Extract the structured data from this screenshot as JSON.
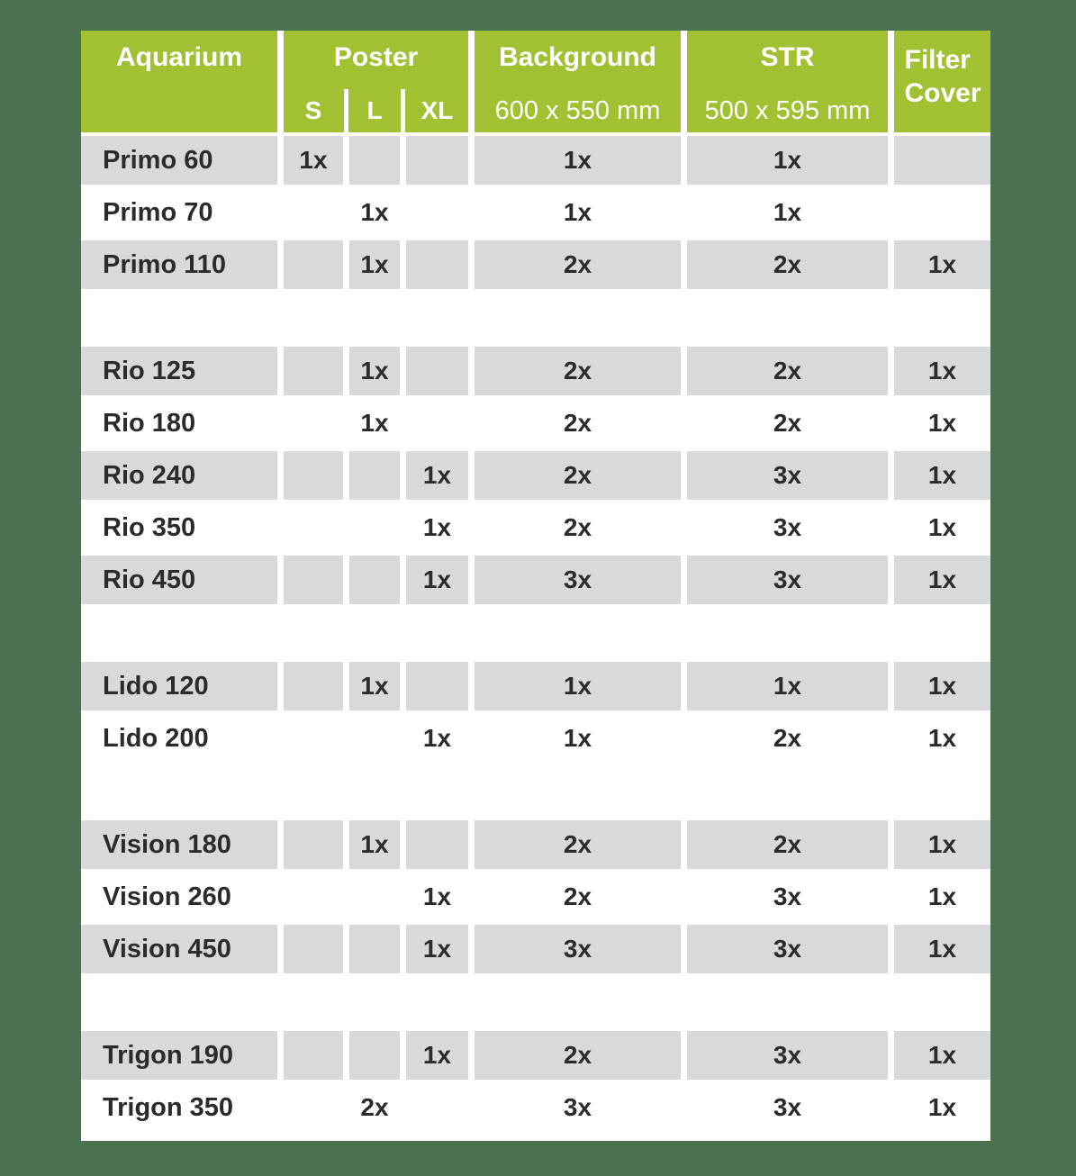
{
  "colors": {
    "page_background": "#4a7150",
    "header_green": "#a2c132",
    "row_gray": "#d8d9da",
    "header_text": "#ffffff",
    "body_text": "#2b2b2b"
  },
  "table": {
    "header": {
      "aquarium": "Aquarium",
      "poster": "Poster",
      "poster_sizes": [
        "S",
        "L",
        "XL"
      ],
      "background_label": "Background",
      "background_size": "600 x 550 mm",
      "str_label": "STR",
      "str_size": "500 x 595 mm",
      "filter_cover_line1": "Filter",
      "filter_cover_line2": "Cover"
    },
    "groups": [
      {
        "rows": [
          {
            "name": "Primo 60",
            "s": "1x",
            "l": "",
            "xl": "",
            "background": "1x",
            "str": "1x",
            "filter": ""
          },
          {
            "name": "Primo 70",
            "s": "",
            "l": "1x",
            "xl": "",
            "background": "1x",
            "str": "1x",
            "filter": ""
          },
          {
            "name": "Primo 110",
            "s": "",
            "l": "1x",
            "xl": "",
            "background": "2x",
            "str": "2x",
            "filter": "1x"
          }
        ]
      },
      {
        "rows": [
          {
            "name": "Rio 125",
            "s": "",
            "l": "1x",
            "xl": "",
            "background": "2x",
            "str": "2x",
            "filter": "1x"
          },
          {
            "name": "Rio 180",
            "s": "",
            "l": "1x",
            "xl": "",
            "background": "2x",
            "str": "2x",
            "filter": "1x"
          },
          {
            "name": "Rio 240",
            "s": "",
            "l": "",
            "xl": "1x",
            "background": "2x",
            "str": "3x",
            "filter": "1x"
          },
          {
            "name": "Rio 350",
            "s": "",
            "l": "",
            "xl": "1x",
            "background": "2x",
            "str": "3x",
            "filter": "1x"
          },
          {
            "name": "Rio 450",
            "s": "",
            "l": "",
            "xl": "1x",
            "background": "3x",
            "str": "3x",
            "filter": "1x"
          }
        ]
      },
      {
        "rows": [
          {
            "name": "Lido 120",
            "s": "",
            "l": "1x",
            "xl": "",
            "background": "1x",
            "str": "1x",
            "filter": "1x"
          },
          {
            "name": "Lido 200",
            "s": "",
            "l": "",
            "xl": "1x",
            "background": "1x",
            "str": "2x",
            "filter": "1x"
          }
        ]
      },
      {
        "rows": [
          {
            "name": "Vision 180",
            "s": "",
            "l": "1x",
            "xl": "",
            "background": "2x",
            "str": "2x",
            "filter": "1x"
          },
          {
            "name": "Vision 260",
            "s": "",
            "l": "",
            "xl": "1x",
            "background": "2x",
            "str": "3x",
            "filter": "1x"
          },
          {
            "name": "Vision 450",
            "s": "",
            "l": "",
            "xl": "1x",
            "background": "3x",
            "str": "3x",
            "filter": "1x"
          }
        ]
      },
      {
        "rows": [
          {
            "name": "Trigon 190",
            "s": "",
            "l": "",
            "xl": "1x",
            "background": "2x",
            "str": "3x",
            "filter": "1x"
          },
          {
            "name": "Trigon 350",
            "s": "",
            "l": "2x",
            "xl": "",
            "background": "3x",
            "str": "3x",
            "filter": "1x"
          }
        ]
      }
    ]
  },
  "chart_data": {
    "type": "table",
    "title": "Aquarium decor compatibility table",
    "columns": [
      "Aquarium",
      "Poster S",
      "Poster L",
      "Poster XL",
      "Background 600 x 550 mm",
      "STR 500 x 595 mm",
      "Filter Cover"
    ],
    "rows": [
      [
        "Primo 60",
        "1x",
        "",
        "",
        "1x",
        "1x",
        ""
      ],
      [
        "Primo 70",
        "",
        "1x",
        "",
        "1x",
        "1x",
        ""
      ],
      [
        "Primo 110",
        "",
        "1x",
        "",
        "2x",
        "2x",
        "1x"
      ],
      [
        "Rio 125",
        "",
        "1x",
        "",
        "2x",
        "2x",
        "1x"
      ],
      [
        "Rio 180",
        "",
        "1x",
        "",
        "2x",
        "2x",
        "1x"
      ],
      [
        "Rio 240",
        "",
        "",
        "1x",
        "2x",
        "3x",
        "1x"
      ],
      [
        "Rio 350",
        "",
        "",
        "1x",
        "2x",
        "3x",
        "1x"
      ],
      [
        "Rio 450",
        "",
        "",
        "1x",
        "3x",
        "3x",
        "1x"
      ],
      [
        "Lido 120",
        "",
        "1x",
        "",
        "1x",
        "1x",
        "1x"
      ],
      [
        "Lido 200",
        "",
        "",
        "1x",
        "1x",
        "2x",
        "1x"
      ],
      [
        "Vision 180",
        "",
        "1x",
        "",
        "2x",
        "2x",
        "1x"
      ],
      [
        "Vision 260",
        "",
        "",
        "1x",
        "2x",
        "3x",
        "1x"
      ],
      [
        "Vision 450",
        "",
        "",
        "1x",
        "3x",
        "3x",
        "1x"
      ],
      [
        "Trigon 190",
        "",
        "",
        "1x",
        "2x",
        "3x",
        "1x"
      ],
      [
        "Trigon 350",
        "",
        "2x",
        "",
        "3x",
        "3x",
        "1x"
      ]
    ],
    "group_row_ranges": [
      [
        0,
        3
      ],
      [
        3,
        8
      ],
      [
        8,
        10
      ],
      [
        10,
        13
      ],
      [
        13,
        15
      ]
    ],
    "layout": "grouped rows separated by blank white bands; within each group rows alternate gray/white starting gray"
  }
}
